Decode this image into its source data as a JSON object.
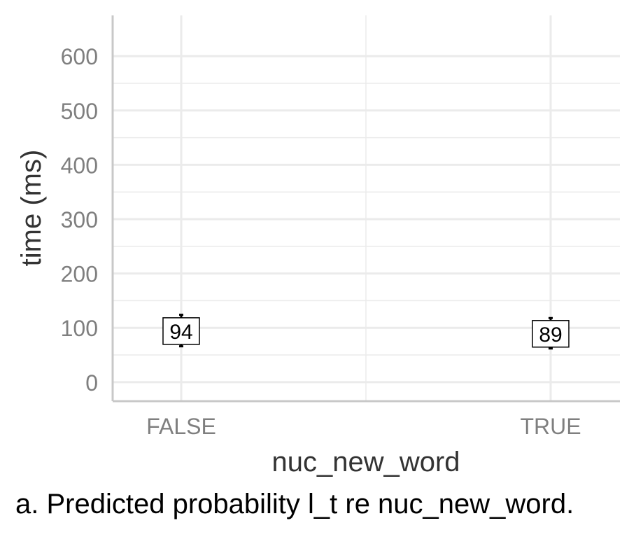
{
  "chart_data": {
    "type": "scatter",
    "xlabel": "nuc_new_word",
    "ylabel": "time (ms)",
    "categories": [
      "FALSE",
      "TRUE"
    ],
    "values": [
      94,
      89
    ],
    "value_labels": [
      "94",
      "89"
    ],
    "error_bars": [
      {
        "low": 66,
        "high": 124
      },
      {
        "low": 62,
        "high": 118
      }
    ],
    "yticks": [
      0,
      100,
      200,
      300,
      400,
      500,
      600
    ],
    "ytick_labels": [
      "0",
      "100",
      "200",
      "300",
      "400",
      "500",
      "600"
    ],
    "ylim": [
      -35,
      675
    ],
    "grid": true,
    "colors": {
      "grid": "#ebebeb",
      "axis": "#c8c8c8",
      "tick_text": "#7f7f7f",
      "title_text": "#333333"
    }
  },
  "caption": "a. Predicted probability l_t re nuc_new_word."
}
